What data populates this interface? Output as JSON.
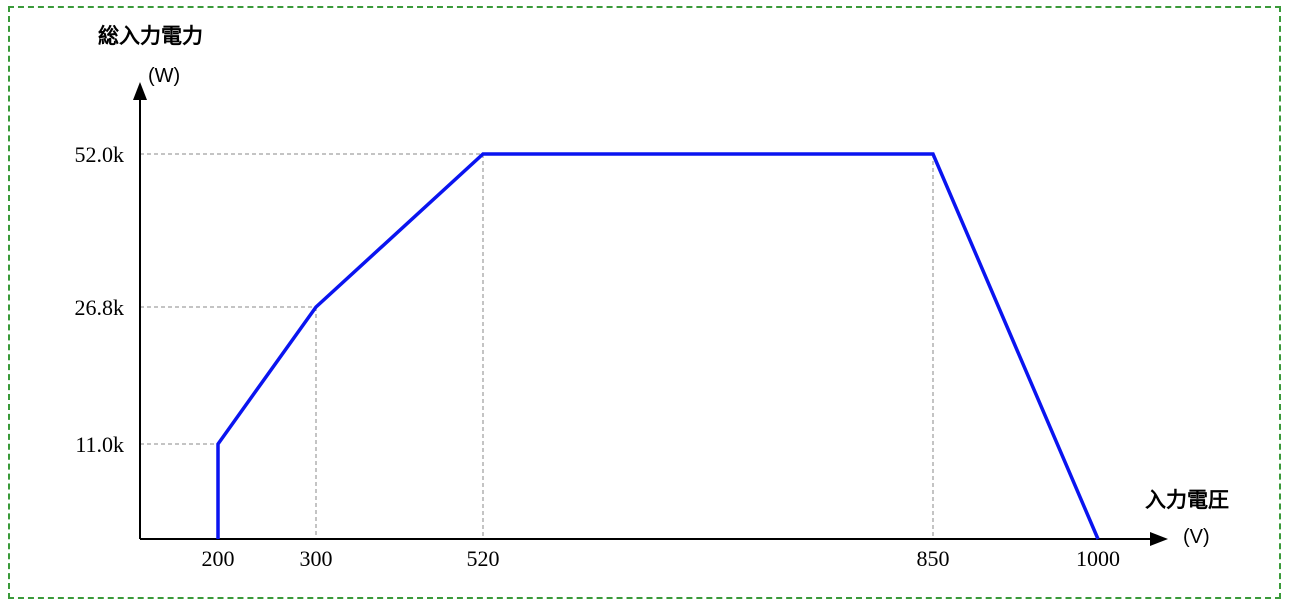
{
  "chart_data": {
    "type": "line",
    "y_axis": {
      "title": "総入力電力",
      "unit": "(W)"
    },
    "x_axis": {
      "title": "入力電圧",
      "unit": "(V)"
    },
    "series": [
      {
        "points": [
          [
            200,
            0
          ],
          [
            200,
            11000
          ],
          [
            300,
            26800
          ],
          [
            520,
            52000
          ],
          [
            850,
            52000
          ],
          [
            1000,
            0
          ]
        ],
        "color": "#0a14f0"
      }
    ],
    "x_ticks": [
      {
        "value": 200,
        "label": "200"
      },
      {
        "value": 300,
        "label": "300"
      },
      {
        "value": 520,
        "label": "520"
      },
      {
        "value": 850,
        "label": "850"
      },
      {
        "value": 1000,
        "label": "1000"
      }
    ],
    "y_ticks": [
      {
        "value": 11000,
        "label": "11.0k"
      },
      {
        "value": 26800,
        "label": "26.8k"
      },
      {
        "value": 52000,
        "label": "52.0k"
      }
    ],
    "guides": [
      [
        200,
        11000
      ],
      [
        300,
        26800
      ],
      [
        520,
        52000
      ],
      [
        850,
        52000
      ]
    ],
    "grid": false,
    "frame_color": "#3a9a3a"
  }
}
